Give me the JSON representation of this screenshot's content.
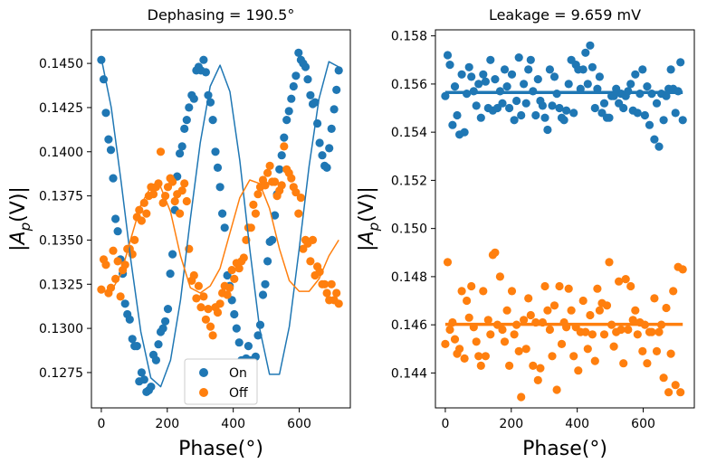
{
  "chart_data": [
    {
      "type": "scatter",
      "title": "Dephasing = 190.5°",
      "xlabel": "Phase(°)",
      "ylabel": "|A_p(V)|",
      "xlim": [
        -30,
        755
      ],
      "ylim": [
        0.1255,
        0.1469
      ],
      "x_ticks": [
        0,
        200,
        400,
        600
      ],
      "x_tick_labels": [
        "0",
        "200",
        "400",
        "600"
      ],
      "y_ticks": [
        0.1275,
        0.13,
        0.1325,
        0.135,
        0.1375,
        0.14,
        0.1425,
        0.145
      ],
      "y_tick_labels": [
        "0.1275",
        "0.1300",
        "0.1325",
        "0.1350",
        "0.1375",
        "0.1400",
        "0.1425",
        "0.1450"
      ],
      "legend": {
        "position": "lower-center",
        "entries": [
          {
            "name": "On",
            "color": "#1f77b4"
          },
          {
            "name": "Off",
            "color": "#ff7f0e"
          }
        ]
      },
      "series": [
        {
          "name": "On",
          "color": "#1f77b4",
          "x": [
            0,
            7,
            14,
            22,
            29,
            36,
            43,
            50,
            58,
            65,
            72,
            79,
            86,
            94,
            101,
            108,
            115,
            122,
            130,
            137,
            144,
            151,
            158,
            166,
            173,
            180,
            187,
            194,
            202,
            209,
            216,
            223,
            230,
            238,
            245,
            252,
            259,
            266,
            274,
            281,
            288,
            295,
            302,
            310,
            317,
            324,
            331,
            338,
            346,
            353,
            360,
            367,
            374,
            382,
            389,
            396,
            403,
            410,
            418,
            425,
            432,
            439,
            446,
            454,
            461,
            468,
            475,
            482,
            490,
            497,
            504,
            511,
            518,
            526,
            533,
            540,
            547,
            554,
            562,
            569,
            576,
            583,
            590,
            598,
            605,
            612,
            619,
            626,
            634,
            641,
            648,
            655,
            662,
            670,
            677,
            684,
            691,
            698,
            706,
            713,
            720
          ],
          "y": [
            0.1452,
            0.1441,
            0.1422,
            0.1407,
            0.1401,
            0.1385,
            0.1362,
            0.1355,
            0.1339,
            0.1331,
            0.1314,
            0.1308,
            0.1305,
            0.1294,
            0.129,
            0.129,
            0.127,
            0.1275,
            0.1271,
            0.1264,
            0.1265,
            0.1267,
            0.1285,
            0.1282,
            0.1291,
            0.1298,
            0.13,
            0.1304,
            0.1311,
            0.1331,
            0.1342,
            0.1367,
            0.1386,
            0.1399,
            0.1403,
            0.1413,
            0.1418,
            0.1425,
            0.1432,
            0.143,
            0.1446,
            0.1448,
            0.1446,
            0.1452,
            0.1445,
            0.1432,
            0.1428,
            0.1418,
            0.14,
            0.1391,
            0.138,
            0.1365,
            0.1357,
            0.133,
            0.1324,
            0.1316,
            0.1308,
            0.13,
            0.1292,
            0.1282,
            0.128,
            0.1283,
            0.129,
            0.1282,
            0.1278,
            0.1284,
            0.1296,
            0.1302,
            0.1319,
            0.1325,
            0.1338,
            0.1349,
            0.135,
            0.1364,
            0.1376,
            0.139,
            0.1398,
            0.1408,
            0.1418,
            0.1423,
            0.143,
            0.1437,
            0.1443,
            0.1456,
            0.1452,
            0.145,
            0.1448,
            0.1441,
            0.1432,
            0.1427,
            0.1428,
            0.1416,
            0.1405,
            0.1398,
            0.1392,
            0.1391,
            0.1402,
            0.1413,
            0.1424,
            0.1435,
            0.1446
          ],
          "fit": {
            "x": [
              0,
              30,
              60,
              90,
              120,
              150,
              180,
              210,
              240,
              270,
              300,
              330,
              360,
              390,
              420,
              450,
              480,
              510,
              540,
              570,
              600,
              630,
              660,
              690,
              720
            ],
            "y": [
              0.1453,
              0.1425,
              0.1383,
              0.1338,
              0.1298,
              0.1272,
              0.1267,
              0.1282,
              0.1316,
              0.1362,
              0.1405,
              0.1437,
              0.1449,
              0.1434,
              0.1395,
              0.1345,
              0.13,
              0.1274,
              0.1274,
              0.1301,
              0.1345,
              0.1392,
              0.143,
              0.1451,
              0.1448
            ]
          }
        },
        {
          "name": "Off",
          "color": "#ff7f0e",
          "x": [
            0,
            7,
            14,
            22,
            29,
            36,
            43,
            50,
            58,
            65,
            72,
            79,
            86,
            94,
            101,
            108,
            115,
            122,
            130,
            137,
            144,
            151,
            158,
            166,
            173,
            180,
            187,
            194,
            202,
            209,
            216,
            223,
            230,
            238,
            245,
            252,
            259,
            266,
            274,
            281,
            288,
            295,
            302,
            310,
            317,
            324,
            331,
            338,
            346,
            353,
            360,
            367,
            374,
            382,
            389,
            396,
            403,
            410,
            418,
            425,
            432,
            439,
            446,
            454,
            461,
            468,
            475,
            482,
            490,
            497,
            504,
            511,
            518,
            526,
            533,
            540,
            547,
            554,
            562,
            569,
            576,
            583,
            590,
            598,
            605,
            612,
            619,
            626,
            634,
            641,
            648,
            655,
            662,
            670,
            677,
            684,
            691,
            698,
            706,
            713,
            720
          ],
          "y": [
            0.1322,
            0.1339,
            0.1336,
            0.132,
            0.1323,
            0.1344,
            0.1328,
            0.1338,
            0.1318,
            0.1333,
            0.1336,
            0.1345,
            0.1345,
            0.1342,
            0.135,
            0.1363,
            0.1367,
            0.1361,
            0.1371,
            0.1365,
            0.1375,
            0.138,
            0.1376,
            0.138,
            0.1382,
            0.14,
            0.1371,
            0.1375,
            0.138,
            0.1385,
            0.1383,
            0.1372,
            0.1376,
            0.1365,
            0.1378,
            0.1382,
            0.1372,
            0.1345,
            0.1327,
            0.133,
            0.1317,
            0.1324,
            0.1312,
            0.1318,
            0.1305,
            0.1311,
            0.1301,
            0.1296,
            0.1312,
            0.1309,
            0.1314,
            0.132,
            0.1324,
            0.1319,
            0.1323,
            0.1333,
            0.1328,
            0.1337,
            0.1334,
            0.1338,
            0.134,
            0.135,
            0.1357,
            0.1357,
            0.137,
            0.1365,
            0.1376,
            0.138,
            0.1384,
            0.1381,
            0.1388,
            0.1392,
            0.1383,
            0.1383,
            0.1375,
            0.1378,
            0.1381,
            0.1403,
            0.139,
            0.1388,
            0.1385,
            0.138,
            0.1377,
            0.1365,
            0.1374,
            0.1345,
            0.135,
            0.1348,
            0.1338,
            0.135,
            0.133,
            0.1335,
            0.1332,
            0.1325,
            0.1325,
            0.132,
            0.1316,
            0.1325,
            0.1316,
            0.132,
            0.1314
          ],
          "fit": {
            "x": [
              0,
              30,
              60,
              90,
              120,
              150,
              180,
              210,
              240,
              270,
              300,
              330,
              360,
              390,
              420,
              450,
              480,
              510,
              540,
              570,
              600,
              630,
              660,
              690,
              720
            ],
            "y": [
              0.1321,
              0.1321,
              0.1331,
              0.1351,
              0.137,
              0.138,
              0.138,
              0.1366,
              0.1341,
              0.1323,
              0.132,
              0.1324,
              0.1334,
              0.1354,
              0.1374,
              0.1384,
              0.1382,
              0.1368,
              0.1345,
              0.1327,
              0.1321,
              0.1321,
              0.1328,
              0.1341,
              0.135
            ]
          }
        }
      ]
    },
    {
      "type": "scatter",
      "title": "Leakage = 9.659 mV",
      "xlabel": "Phase(°)",
      "ylabel": "|A_p(V)|",
      "xlim": [
        -30,
        755
      ],
      "ylim": [
        0.14255,
        0.15825
      ],
      "x_ticks": [
        0,
        200,
        400,
        600
      ],
      "x_tick_labels": [
        "0",
        "200",
        "400",
        "600"
      ],
      "y_ticks": [
        0.144,
        0.146,
        0.148,
        0.15,
        0.152,
        0.154,
        0.156,
        0.158
      ],
      "y_tick_labels": [
        "0.144",
        "0.146",
        "0.148",
        "0.150",
        "0.152",
        "0.154",
        "0.156",
        "0.158"
      ],
      "series": [
        {
          "name": "On",
          "color": "#1f77b4",
          "x": [
            0,
            7,
            14,
            22,
            29,
            36,
            43,
            50,
            58,
            65,
            72,
            79,
            86,
            94,
            101,
            108,
            115,
            122,
            130,
            137,
            144,
            151,
            158,
            166,
            173,
            180,
            187,
            194,
            202,
            209,
            216,
            223,
            230,
            238,
            245,
            252,
            259,
            266,
            274,
            281,
            288,
            295,
            302,
            310,
            317,
            324,
            331,
            338,
            346,
            353,
            360,
            367,
            374,
            382,
            389,
            396,
            403,
            410,
            418,
            425,
            432,
            439,
            446,
            454,
            461,
            468,
            475,
            482,
            490,
            497,
            504,
            511,
            518,
            526,
            533,
            540,
            547,
            554,
            562,
            569,
            576,
            583,
            590,
            598,
            605,
            612,
            619,
            626,
            634,
            641,
            648,
            655,
            662,
            670,
            677,
            684,
            691,
            698,
            706,
            713,
            720
          ],
          "y": [
            0.1555,
            0.1572,
            0.1568,
            0.1543,
            0.1559,
            0.1547,
            0.1539,
            0.1564,
            0.154,
            0.1556,
            0.1567,
            0.1563,
            0.1557,
            0.1551,
            0.156,
            0.1546,
            0.1564,
            0.1561,
            0.155,
            0.157,
            0.1549,
            0.1562,
            0.155,
            0.1557,
            0.1552,
            0.1566,
            0.1559,
            0.155,
            0.1564,
            0.1545,
            0.1553,
            0.1571,
            0.1547,
            0.156,
            0.1552,
            0.1566,
            0.157,
            0.1557,
            0.1547,
            0.1562,
            0.1553,
            0.1551,
            0.1546,
            0.1541,
            0.1566,
            0.1551,
            0.1563,
            0.1556,
            0.155,
            0.1546,
            0.1545,
            0.1549,
            0.156,
            0.157,
            0.1548,
            0.1568,
            0.1566,
            0.1558,
            0.1566,
            0.1573,
            0.156,
            0.1576,
            0.1567,
            0.155,
            0.1558,
            0.1563,
            0.1548,
            0.1552,
            0.1546,
            0.1546,
            0.1555,
            0.1555,
            0.1558,
            0.1552,
            0.1556,
            0.155,
            0.1555,
            0.1557,
            0.156,
            0.1549,
            0.1564,
            0.1548,
            0.1556,
            0.1566,
            0.1547,
            0.1559,
            0.1543,
            0.1556,
            0.1537,
            0.1552,
            0.1534,
            0.1556,
            0.1545,
            0.1555,
            0.1558,
            0.1566,
            0.1558,
            0.1548,
            0.1557,
            0.1569,
            0.1545
          ],
          "fit": {
            "x": [
              0,
              720
            ],
            "y": [
              0.15565,
              0.15565
            ]
          }
        },
        {
          "name": "Off",
          "color": "#ff7f0e",
          "x": [
            0,
            7,
            14,
            22,
            29,
            36,
            43,
            50,
            58,
            65,
            72,
            79,
            86,
            94,
            101,
            108,
            115,
            122,
            130,
            137,
            144,
            151,
            158,
            166,
            173,
            180,
            187,
            194,
            202,
            209,
            216,
            223,
            230,
            238,
            245,
            252,
            259,
            266,
            274,
            281,
            288,
            295,
            302,
            310,
            317,
            324,
            331,
            338,
            346,
            353,
            360,
            367,
            374,
            382,
            389,
            396,
            403,
            410,
            418,
            425,
            432,
            439,
            446,
            454,
            461,
            468,
            475,
            482,
            490,
            497,
            504,
            511,
            518,
            526,
            533,
            540,
            547,
            554,
            562,
            569,
            576,
            583,
            590,
            598,
            605,
            612,
            619,
            626,
            634,
            641,
            648,
            655,
            662,
            670,
            677,
            684,
            691,
            698,
            706,
            713,
            720
          ],
          "y": [
            0.1452,
            0.1486,
            0.1458,
            0.1461,
            0.1454,
            0.1448,
            0.145,
            0.1474,
            0.1446,
            0.147,
            0.1463,
            0.1476,
            0.1459,
            0.1453,
            0.1447,
            0.1443,
            0.1474,
            0.1447,
            0.1462,
            0.1456,
            0.1489,
            0.149,
            0.146,
            0.148,
            0.1458,
            0.1453,
            0.1466,
            0.1443,
            0.1474,
            0.1456,
            0.146,
            0.1449,
            0.143,
            0.1462,
            0.145,
            0.1471,
            0.1464,
            0.1443,
            0.1461,
            0.1437,
            0.1442,
            0.1461,
            0.1476,
            0.1466,
            0.1458,
            0.1447,
            0.1468,
            0.1433,
            0.1476,
            0.1452,
            0.1461,
            0.1459,
            0.1475,
            0.1466,
            0.1447,
            0.1459,
            0.1441,
            0.1457,
            0.147,
            0.1457,
            0.145,
            0.1464,
            0.1456,
            0.1445,
            0.1475,
            0.1466,
            0.1469,
            0.1456,
            0.1468,
            0.1486,
            0.146,
            0.1451,
            0.1457,
            0.1478,
            0.1458,
            0.1444,
            0.1479,
            0.1458,
            0.1476,
            0.1462,
            0.1466,
            0.1456,
            0.1461,
            0.1449,
            0.146,
            0.1444,
            0.1457,
            0.1457,
            0.1471,
            0.1449,
            0.1457,
            0.146,
            0.1438,
            0.1467,
            0.1432,
            0.1448,
            0.1474,
            0.1435,
            0.1484,
            0.1432,
            0.1483
          ],
          "fit": {
            "x": [
              0,
              720
            ],
            "y": [
              0.14602,
              0.14602
            ]
          }
        }
      ]
    }
  ]
}
